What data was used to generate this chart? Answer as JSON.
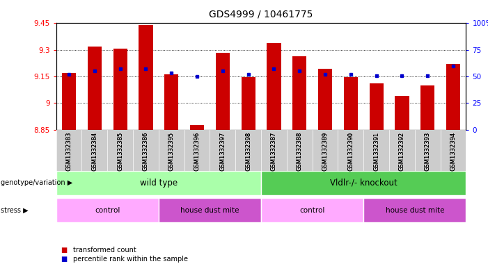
{
  "title": "GDS4999 / 10461775",
  "samples": [
    "GSM1332383",
    "GSM1332384",
    "GSM1332385",
    "GSM1332386",
    "GSM1332395",
    "GSM1332396",
    "GSM1332397",
    "GSM1332398",
    "GSM1332387",
    "GSM1332388",
    "GSM1332389",
    "GSM1332390",
    "GSM1332391",
    "GSM1332392",
    "GSM1332393",
    "GSM1332394"
  ],
  "bar_values": [
    9.17,
    9.32,
    9.305,
    9.44,
    9.16,
    8.875,
    9.285,
    9.145,
    9.34,
    9.265,
    9.195,
    9.145,
    9.11,
    9.04,
    9.1,
    9.22
  ],
  "percentile_values": [
    52,
    55,
    57,
    57,
    53,
    50,
    55,
    52,
    57,
    55,
    52,
    52,
    51,
    51,
    51,
    60
  ],
  "ymin": 8.85,
  "ymax": 9.45,
  "yticks": [
    8.85,
    9.0,
    9.15,
    9.3,
    9.45
  ],
  "ytick_labels": [
    "8.85",
    "9",
    "9.15",
    "9.3",
    "9.45"
  ],
  "right_yticks": [
    0,
    25,
    50,
    75,
    100
  ],
  "right_ytick_labels": [
    "0",
    "25",
    "50",
    "75",
    "100%"
  ],
  "bar_color": "#cc0000",
  "dot_color": "#0000cc",
  "genotype_labels": [
    "wild type",
    "Vldlr-/- knockout"
  ],
  "genotype_ranges": [
    [
      0,
      7
    ],
    [
      8,
      15
    ]
  ],
  "genotype_color_light": "#aaffaa",
  "genotype_color_dark": "#55cc55",
  "stress_groups": [
    {
      "label": "control",
      "range": [
        0,
        3
      ],
      "color": "#ffaaff"
    },
    {
      "label": "house dust mite",
      "range": [
        4,
        7
      ],
      "color": "#cc55cc"
    },
    {
      "label": "control",
      "range": [
        8,
        11
      ],
      "color": "#ffaaff"
    },
    {
      "label": "house dust mite",
      "range": [
        12,
        15
      ],
      "color": "#cc55cc"
    }
  ],
  "legend_items": [
    {
      "color": "#cc0000",
      "label": "transformed count"
    },
    {
      "color": "#0000cc",
      "label": "percentile rank within the sample"
    }
  ],
  "sample_bg_color": "#cccccc",
  "plot_bg": "#ffffff"
}
